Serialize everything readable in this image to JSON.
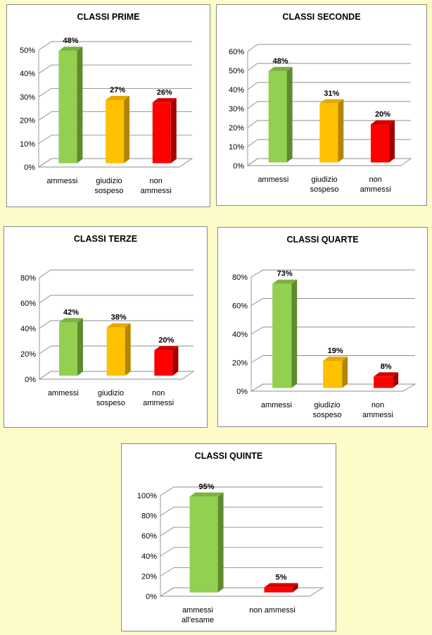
{
  "chart_data": [
    {
      "type": "bar",
      "title": "CLASSI PRIME",
      "categories": [
        [
          "ammessi"
        ],
        [
          "giudizio",
          "sospeso"
        ],
        [
          "non",
          "ammessi"
        ]
      ],
      "values": [
        48,
        27,
        26
      ],
      "value_labels": [
        "48%",
        "27%",
        "26%"
      ],
      "ylim": [
        0,
        50
      ],
      "yticks": [
        "0%",
        "10%",
        "20%",
        "30%",
        "40%",
        "50%"
      ],
      "bar_colors": [
        "green",
        "yellow",
        "red"
      ],
      "grid": true
    },
    {
      "type": "bar",
      "title": "CLASSI SECONDE",
      "categories": [
        [
          "ammessi"
        ],
        [
          "giudizio",
          "sospeso"
        ],
        [
          "non",
          "ammessi"
        ]
      ],
      "values": [
        48,
        31,
        20
      ],
      "value_labels": [
        "48%",
        "31%",
        "20%"
      ],
      "ylim": [
        0,
        60
      ],
      "yticks": [
        "0%",
        "10%",
        "20%",
        "30%",
        "40%",
        "50%",
        "60%"
      ],
      "bar_colors": [
        "green",
        "yellow",
        "red"
      ],
      "grid": true
    },
    {
      "type": "bar",
      "title": "CLASSI TERZE",
      "categories": [
        [
          "ammessi"
        ],
        [
          "giudizio",
          "sospeso"
        ],
        [
          "non",
          "ammessi"
        ]
      ],
      "values": [
        42,
        38,
        20
      ],
      "value_labels": [
        "42%",
        "38%",
        "20%"
      ],
      "ylim": [
        0,
        80
      ],
      "yticks": [
        "0%",
        "20%",
        "40%",
        "60%",
        "80%"
      ],
      "bar_colors": [
        "green",
        "yellow",
        "red"
      ],
      "grid": true
    },
    {
      "type": "bar",
      "title": "CLASSI QUARTE",
      "categories": [
        [
          "ammessi"
        ],
        [
          "giudizio",
          "sospeso"
        ],
        [
          "non",
          "ammessi"
        ]
      ],
      "values": [
        73,
        19,
        8
      ],
      "value_labels": [
        "73%",
        "19%",
        "8%"
      ],
      "ylim": [
        0,
        80
      ],
      "yticks": [
        "0%",
        "20%",
        "40%",
        "60%",
        "80%"
      ],
      "bar_colors": [
        "green",
        "yellow",
        "red"
      ],
      "grid": true
    },
    {
      "type": "bar",
      "title": "CLASSI QUINTE",
      "categories": [
        [
          "ammessi",
          "all'esame"
        ],
        [
          "non ammessi"
        ]
      ],
      "values": [
        95,
        5
      ],
      "value_labels": [
        "95%",
        "5%"
      ],
      "ylim": [
        0,
        100
      ],
      "yticks": [
        "0%",
        "20%",
        "40%",
        "60%",
        "80%",
        "100%"
      ],
      "bar_colors": [
        "green",
        "red"
      ],
      "grid": true
    }
  ],
  "palette": {
    "green": {
      "front": "#92d050",
      "side": "#5f8a2e",
      "top": "#7bb241"
    },
    "yellow": {
      "front": "#ffc000",
      "side": "#b38600",
      "top": "#e6a800"
    },
    "red": {
      "front": "#ff0000",
      "side": "#a00000",
      "top": "#d40000"
    },
    "background": "#fdfcc8"
  }
}
